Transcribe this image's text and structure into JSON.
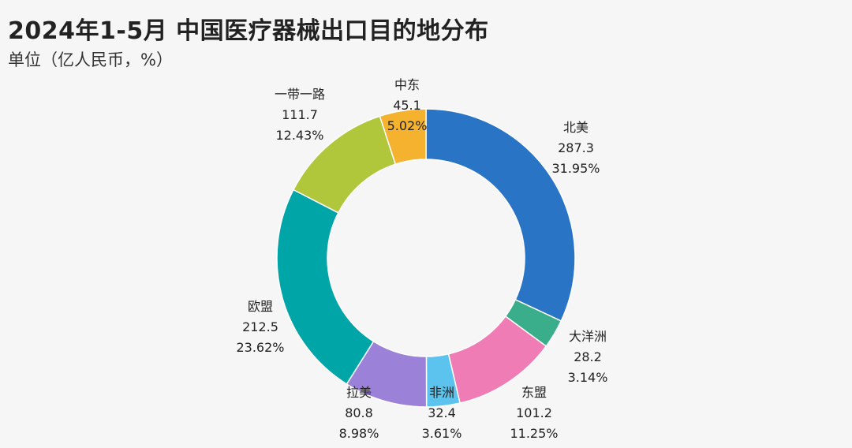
{
  "chart_data": {
    "type": "pie",
    "subtype": "donut",
    "title": "2024年1-5月 中国医疗器械出口目的地分布",
    "subtitle": "单位（亿人民币，%）",
    "slices": [
      {
        "label": "北美",
        "value": 287.3,
        "value_text": "287.3",
        "percent": "31.95%",
        "color": "#2a74c5"
      },
      {
        "label": "大洋洲",
        "value": 28.2,
        "value_text": "28.2",
        "percent": "3.14%",
        "color": "#3aae8a"
      },
      {
        "label": "东盟",
        "value": 101.2,
        "value_text": "101.2",
        "percent": "11.25%",
        "color": "#ef7cb4"
      },
      {
        "label": "非洲",
        "value": 32.4,
        "value_text": "32.4",
        "percent": "3.61%",
        "color": "#5cc3ee"
      },
      {
        "label": "拉美",
        "value": 80.8,
        "value_text": "80.8",
        "percent": "8.98%",
        "color": "#9b82d8"
      },
      {
        "label": "欧盟",
        "value": 212.5,
        "value_text": "212.5",
        "percent": "23.62%",
        "color": "#00a5a7"
      },
      {
        "label": "一带一路",
        "value": 111.7,
        "value_text": "111.7",
        "percent": "12.43%",
        "color": "#b1c73b"
      },
      {
        "label": "中东",
        "value": 45.1,
        "value_text": "45.1",
        "percent": "5.02%",
        "color": "#f4b22f"
      }
    ]
  }
}
